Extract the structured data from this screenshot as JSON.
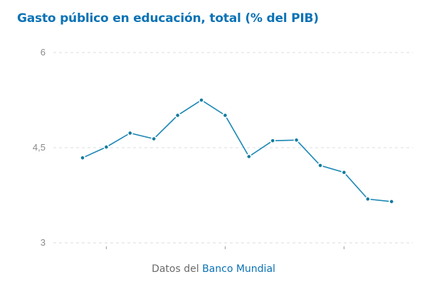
{
  "chart_data": {
    "type": "line",
    "title": "Gasto público en educación, total (% del PIB)",
    "ylim": [
      3,
      6
    ],
    "yticks": [
      {
        "value": 6,
        "label": "6"
      },
      {
        "value": 4.5,
        "label": "4,5"
      },
      {
        "value": 3,
        "label": "3"
      }
    ],
    "grid": true,
    "series": [
      {
        "values": [
          4.34,
          4.51,
          4.73,
          4.64,
          5.01,
          5.25,
          5.01,
          4.36,
          4.61,
          4.62,
          4.22,
          4.11,
          3.69,
          3.65
        ]
      }
    ],
    "line_color": "#1a87b5",
    "marker_color": "#127b9c"
  },
  "source": {
    "prefix": "Datos del",
    "link_label": "Banco Mundial"
  },
  "colors": {
    "title": "#0a72b5",
    "link": "#0a72b5"
  }
}
